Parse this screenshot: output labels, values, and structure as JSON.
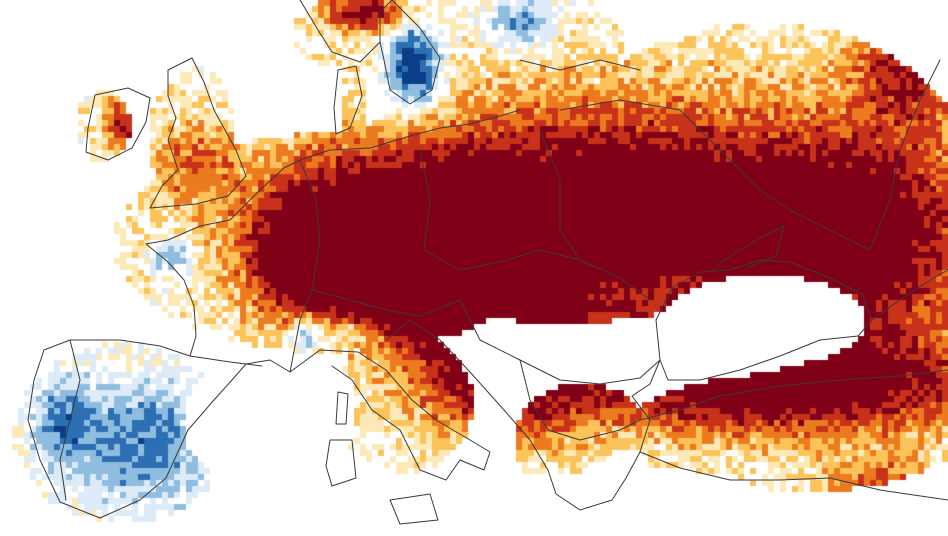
{
  "map": {
    "type": "anomaly-heatmap",
    "region": "Europe",
    "palette": {
      "strong_dry": "#800018",
      "dry": "#c8321a",
      "moderate_dry": "#ec7a1e",
      "slight_dry": "#fbc35a",
      "faint_dry": "#fde9b8",
      "neutral": "#ffffff",
      "faint_wet": "#dcebf7",
      "wet": "#8fbde0",
      "strong_wet": "#2c6fb3",
      "very_wet": "#0b3e86",
      "water": "#ffffff",
      "borders": "#3a3a3a"
    }
  }
}
